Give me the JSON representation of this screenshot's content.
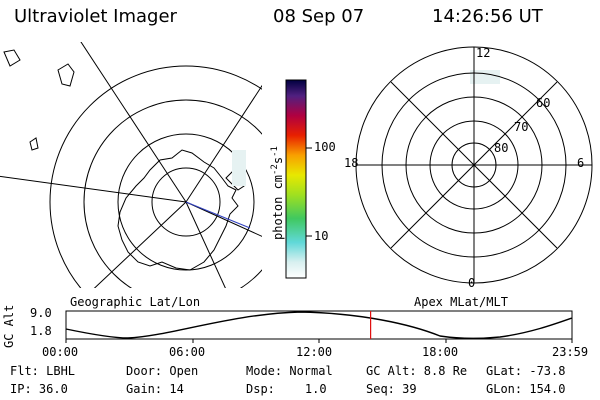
{
  "header": {
    "instrument": "Ultraviolet Imager",
    "date": "08 Sep 07",
    "time": "14:26:56 UT"
  },
  "colorbar": {
    "unit_label": "photon cm",
    "unit_exp1": "-2",
    "unit_s": "s",
    "unit_exp2": "-1",
    "tick_100": "100",
    "tick_10": "10"
  },
  "left_panel": {
    "label": "Geographic Lat/Lon"
  },
  "right_panel": {
    "label": "Apex MLat/MLT",
    "mlt_labels": {
      "top": "12",
      "left": "18",
      "right": "6",
      "bottom": "0"
    },
    "mlat_labels": [
      "60",
      "70",
      "80"
    ]
  },
  "timeline": {
    "ylabel": "GC Alt",
    "ymax": "9.0",
    "ymin": "1.8",
    "x_ticks": [
      "00:00",
      "06:00",
      "12:00",
      "18:00",
      "23:59"
    ],
    "current_fraction": 0.602
  },
  "info": {
    "filter": "Flt: LBHL",
    "ip": "IP: 36.0",
    "door": "Door: Open",
    "gain": "Gain: 14",
    "mode": "Mode: Normal",
    "dsp_label": "Dsp:",
    "dsp_value": "1.0",
    "gc_alt": "GC Alt: 8.8 Re",
    "seq": "Seq: 39",
    "glat": "GLat: -73.8",
    "glon": "GLon: 154.0"
  },
  "colors": {
    "marker": "#e01010",
    "track": "#3040c0"
  }
}
